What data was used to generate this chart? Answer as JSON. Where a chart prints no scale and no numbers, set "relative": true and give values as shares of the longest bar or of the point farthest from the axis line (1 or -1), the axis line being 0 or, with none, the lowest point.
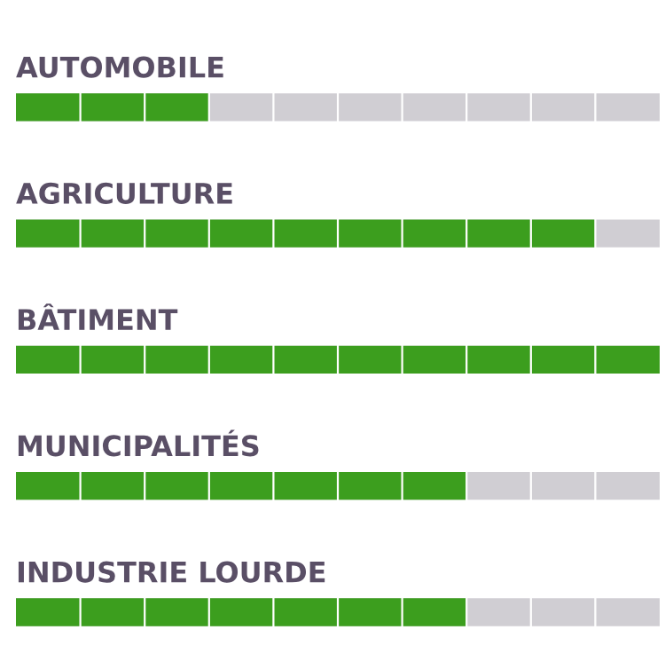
{
  "chart_data": {
    "type": "bar",
    "orientation": "horizontal",
    "relative": true,
    "categories": [
      "AUTOMOBILE",
      "AGRICULTURE",
      "BÂTIMENT",
      "MUNICIPALITÉS",
      "INDUSTRIE LOURDE"
    ],
    "values": [
      0.3,
      0.9,
      1,
      0.7,
      0.7
    ],
    "color": "#3c9e1e"
  }
}
